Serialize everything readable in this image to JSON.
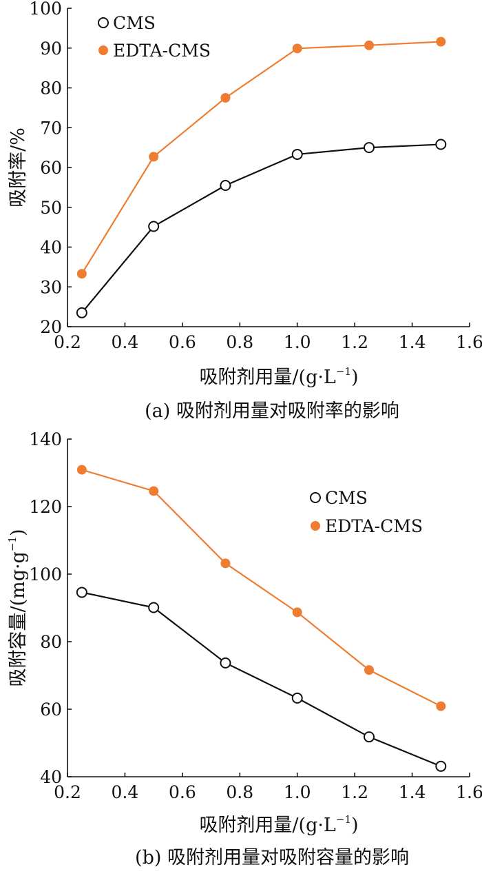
{
  "colors": {
    "cms": "#111111",
    "edta": "#ee7d31",
    "axis": "#111111"
  },
  "chart_data": [
    {
      "type": "line",
      "xlabel": "吸附剂用量/(g·L",
      "xlabel_sup": "−1",
      "xlabel_close": ")",
      "ylabel": "吸附率/%",
      "caption": "(a) 吸附剂用量对吸附率的影响",
      "xlim": [
        0.2,
        1.6
      ],
      "ylim": [
        20,
        100
      ],
      "xticks": [
        0.2,
        0.4,
        0.6,
        0.8,
        1.0,
        1.2,
        1.4,
        1.6
      ],
      "yticks": [
        20,
        30,
        40,
        50,
        60,
        70,
        80,
        90,
        100
      ],
      "xtick_labels": [
        "0.2",
        "0.4",
        "0.6",
        "0.8",
        "1.0",
        "1.2",
        "1.4",
        "1.6"
      ],
      "ytick_labels": [
        "20",
        "30",
        "40",
        "50",
        "60",
        "70",
        "80",
        "90",
        "100"
      ],
      "x": [
        0.25,
        0.5,
        0.75,
        1.0,
        1.25,
        1.5
      ],
      "legend": "top-left",
      "grid": false,
      "series": [
        {
          "name": "CMS",
          "marker": "open-circle",
          "values": [
            23.5,
            45.2,
            55.5,
            63.3,
            65.0,
            65.8
          ]
        },
        {
          "name": "EDTA-CMS",
          "marker": "filled-circle",
          "values": [
            33.3,
            62.7,
            77.5,
            89.9,
            90.7,
            91.6
          ]
        }
      ]
    },
    {
      "type": "line",
      "xlabel": "吸附剂用量/(g·L",
      "xlabel_sup": "−1",
      "xlabel_close": ")",
      "ylabel": "吸附容量/(mg·g",
      "ylabel_sup": "−1",
      "ylabel_close": ")",
      "caption": "(b) 吸附剂用量对吸附容量的影响",
      "xlim": [
        0.2,
        1.6
      ],
      "ylim": [
        40,
        140
      ],
      "xticks": [
        0.2,
        0.4,
        0.6,
        0.8,
        1.0,
        1.2,
        1.4,
        1.6
      ],
      "yticks": [
        40,
        60,
        80,
        100,
        120,
        140
      ],
      "xtick_labels": [
        "0.2",
        "0.4",
        "0.6",
        "0.8",
        "1.0",
        "1.2",
        "1.4",
        "1.6"
      ],
      "ytick_labels": [
        "40",
        "60",
        "80",
        "100",
        "120",
        "140"
      ],
      "x": [
        0.25,
        0.5,
        0.75,
        1.0,
        1.25,
        1.5
      ],
      "legend": "top-right",
      "grid": false,
      "series": [
        {
          "name": "CMS",
          "marker": "open-circle",
          "values": [
            94.6,
            90.1,
            73.7,
            63.3,
            51.8,
            43.1
          ]
        },
        {
          "name": "EDTA-CMS",
          "marker": "filled-circle",
          "values": [
            130.9,
            124.6,
            103.2,
            88.7,
            71.6,
            60.9
          ]
        }
      ]
    }
  ]
}
